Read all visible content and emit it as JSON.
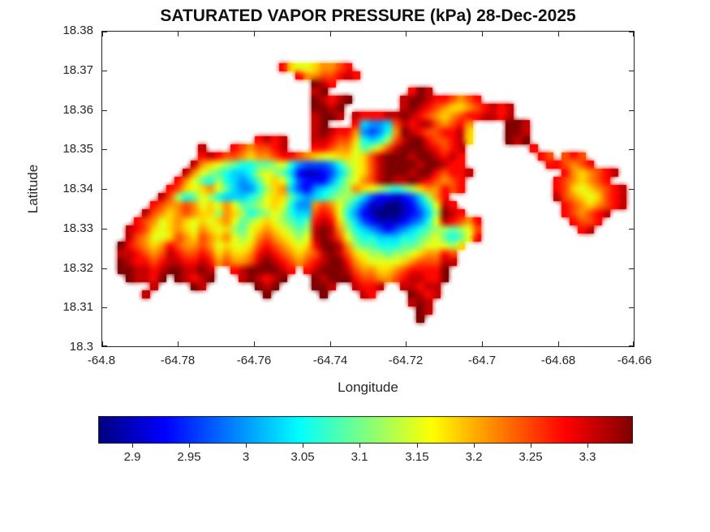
{
  "figure": {
    "title": "SATURATED VAPOR PRESSURE (kPa) 28-Dec-2025",
    "xlabel": "Longitude",
    "ylabel": "Latitude"
  },
  "colors": {
    "background": "#ffffff",
    "axis": "#262626",
    "title_text": "#111111"
  },
  "chart_data": {
    "type": "heatmap",
    "title": "SATURATED VAPOR PRESSURE (kPa) 28-Dec-2025",
    "variable": "Saturated vapor pressure",
    "units": "kPa",
    "date": "28-Dec-2025",
    "xlabel": "Longitude",
    "ylabel": "Latitude",
    "x_range": [
      -64.8,
      -64.66
    ],
    "y_range": [
      18.3,
      18.38
    ],
    "grid_lines": false,
    "x_ticks": {
      "values": [
        -64.8,
        -64.78,
        -64.76,
        -64.74,
        -64.72,
        -64.7,
        -64.68,
        -64.66
      ],
      "labels": [
        "-64.8",
        "-64.78",
        "-64.76",
        "-64.74",
        "-64.72",
        "-64.7",
        "-64.68",
        "-64.66"
      ]
    },
    "y_ticks": {
      "values": [
        18.3,
        18.31,
        18.32,
        18.33,
        18.34,
        18.35,
        18.36,
        18.37,
        18.38
      ],
      "labels": [
        "18.3",
        "18.31",
        "18.32",
        "18.33",
        "18.34",
        "18.35",
        "18.36",
        "18.37",
        "18.38"
      ]
    },
    "colorbar": {
      "colormap": "jet",
      "orientation": "horizontal",
      "vmin": 2.87,
      "vmax": 3.34,
      "tick_values": [
        2.9,
        2.95,
        3.0,
        3.05,
        3.1,
        3.15,
        3.2,
        3.25,
        3.3
      ],
      "tick_labels": [
        "2.9",
        "2.95",
        "3",
        "3.05",
        "3.1",
        "3.15",
        "3.2",
        "3.25",
        "3.3"
      ]
    },
    "grid": {
      "cols": 66,
      "rows": 39,
      "encoding": "Each row is a list of [startColumn, levelString] segments. Level chars 0-F map linearly to value = vmin + (level/15)*(vmax-vmin) kPa; cells not covered are sea (no data).",
      "segments_by_row": [
        [],
        [],
        [],
        [],
        [
          [
            22,
            "DA99ABBCD"
          ]
        ],
        [
          [
            24,
            "DBBCCDED"
          ]
        ],
        [
          [
            26,
            "FED"
          ]
        ],
        [
          [
            26,
            "EF"
          ],
          [
            38,
            "DFE"
          ]
        ],
        [
          [
            26,
            "FEDEF"
          ],
          [
            37,
            "EFFED"
          ],
          [
            42,
            "DCBCD"
          ]
        ],
        [
          [
            26,
            "FFEF"
          ],
          [
            37,
            "EFEDCBAABCDEDE"
          ]
        ],
        [
          [
            26,
            "EFFE"
          ],
          [
            31,
            "EDDDEEFEDCBABCDDEEDE"
          ]
        ],
        [
          [
            26,
            "EF"
          ],
          [
            31,
            "D5445CEDEECBCDB"
          ],
          [
            50,
            "FFE"
          ]
        ],
        [
          [
            26,
            "EFEDDB4346BFEDCCDDEA"
          ],
          [
            50,
            "FFE"
          ]
        ],
        [
          [
            19,
            "DEDE"
          ],
          [
            26,
            "EEDCCA6568CEFFDCCDEA"
          ],
          [
            50,
            "FEF"
          ]
        ],
        [
          [
            12,
            "E"
          ],
          [
            16,
            "DCBCCDE"
          ],
          [
            26,
            "DDCBB978ACEFFFEDCDE"
          ],
          [
            53,
            "D"
          ]
        ],
        [
          [
            12,
            "DEDCCBABBCDDCBA99AA9ACEFFFEFFEDED"
          ],
          [
            54,
            "DC"
          ],
          [
            57,
            "CDC"
          ]
        ],
        [
          [
            11,
            "EBA987667789643334689ACEFFFFEFFEDD"
          ],
          [
            55,
            "DDCBCD"
          ]
        ],
        [
          [
            10,
            "EB98765568987521123579ACEFFFEFFDCDDE"
          ],
          [
            57,
            "DBABCDE"
          ]
        ],
        [
          [
            9,
            "DB9768654579A9632224689BCEFEEFEDCBCD"
          ],
          [
            56,
            "DCBABCD"
          ]
        ],
        [
          [
            8,
            "DCA9AB9754468AB53245678BA987678ABBDCD"
          ],
          [
            56,
            "DCA9ABCDE"
          ]
        ],
        [
          [
            7,
            "EC867986555679AA754567887532212358BD"
          ],
          [
            56,
            "ECBA9ACDE"
          ]
        ],
        [
          [
            6,
            "DCBBCB9A9B97789A9644BCB9753110012469ED"
          ],
          [
            57,
            "DCBABCDE"
          ]
        ],
        [
          [
            5,
            "ECBABCBAA8BA867898655CDC9642100012358FED"
          ],
          [
            57,
            "DCBCDE"
          ]
        ],
        [
          [
            4,
            "DCB9ABA9A9AB9789A98767DEDA753211123469EDCBD"
          ],
          [
            58,
            "DCCD"
          ]
        ],
        [
          [
            3,
            "EDCA9ABA9BA9A879ABA9878EFEB8654323456788789C"
          ],
          [
            59,
            "DE"
          ]
        ],
        [
          [
            3,
            "ECB99ACBACBAB989BCBA989EFEC9766555667897679D"
          ]
        ],
        [
          [
            2,
            "FDCBABDCBBCB9A99ACDCBA9ADFFEB8776667789998A"
          ]
        ],
        [
          [
            2,
            "EEDCBCEDCCDCABAABDEDCBABCEFECA9887889ABBDC"
          ]
        ],
        [
          [
            2,
            "FEDDCDEEDDEDBCBBCEFEDCBCDEFFDBA9999ABCCCEE"
          ]
        ],
        [
          [
            2,
            "FFEEDEFFEEFE"
          ],
          [
            16,
            "DEFFFFED"
          ],
          [
            25,
            "DEFFFECBBAABCDDDDF"
          ]
        ],
        [
          [
            3,
            "FEEDF"
          ],
          [
            9,
            "FEDEF"
          ],
          [
            17,
            "EFEDEF"
          ],
          [
            26,
            "FEFFFDCCBBCDEEDDF"
          ]
        ],
        [
          [
            6,
            "E"
          ],
          [
            11,
            "FE"
          ],
          [
            19,
            "FEF"
          ],
          [
            26,
            "FFE"
          ],
          [
            31,
            "EDDE"
          ],
          [
            37,
            "EEDEE"
          ]
        ],
        [
          [
            5,
            "E"
          ],
          [
            20,
            "F"
          ],
          [
            27,
            "F"
          ],
          [
            32,
            "ED"
          ],
          [
            38,
            "FEDE"
          ]
        ],
        [
          [
            38,
            "EFE"
          ]
        ],
        [
          [
            39,
            "FE"
          ]
        ],
        [
          [
            39,
            "F"
          ]
        ],
        [],
        [],
        []
      ]
    }
  }
}
